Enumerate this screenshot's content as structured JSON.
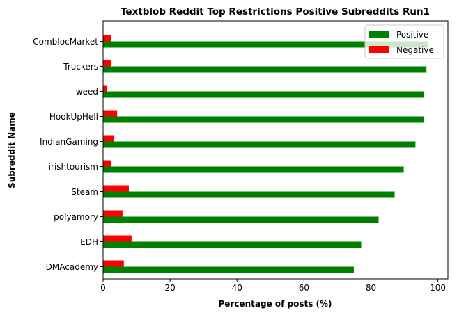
{
  "chart_data": {
    "type": "bar",
    "orientation": "horizontal",
    "title": "Textblob Reddit Top Restrictions Positive Subreddits Run1",
    "xlabel": "Percentage of posts (%)",
    "ylabel": "Subreddit Name",
    "xlim": [
      0,
      103
    ],
    "xticks": [
      "0",
      "20",
      "40",
      "60",
      "80",
      "100"
    ],
    "categories": [
      "DMAcademy",
      "EDH",
      "polyamory",
      "Steam",
      "irishtourism",
      "IndianGaming",
      "HookUpHell",
      "weed",
      "Truckers",
      "CombIocMarket"
    ],
    "series": [
      {
        "name": "Positive",
        "color": "#008000",
        "values": [
          74.9,
          77.1,
          82.3,
          87.1,
          89.8,
          93.3,
          95.8,
          95.8,
          96.6,
          97.0
        ]
      },
      {
        "name": "Negative",
        "color": "#ff0000",
        "values": [
          6.2,
          8.5,
          5.8,
          7.7,
          2.5,
          3.3,
          4.2,
          1.1,
          2.3,
          2.4
        ]
      }
    ],
    "legend_position": "top-right",
    "grid": false
  }
}
